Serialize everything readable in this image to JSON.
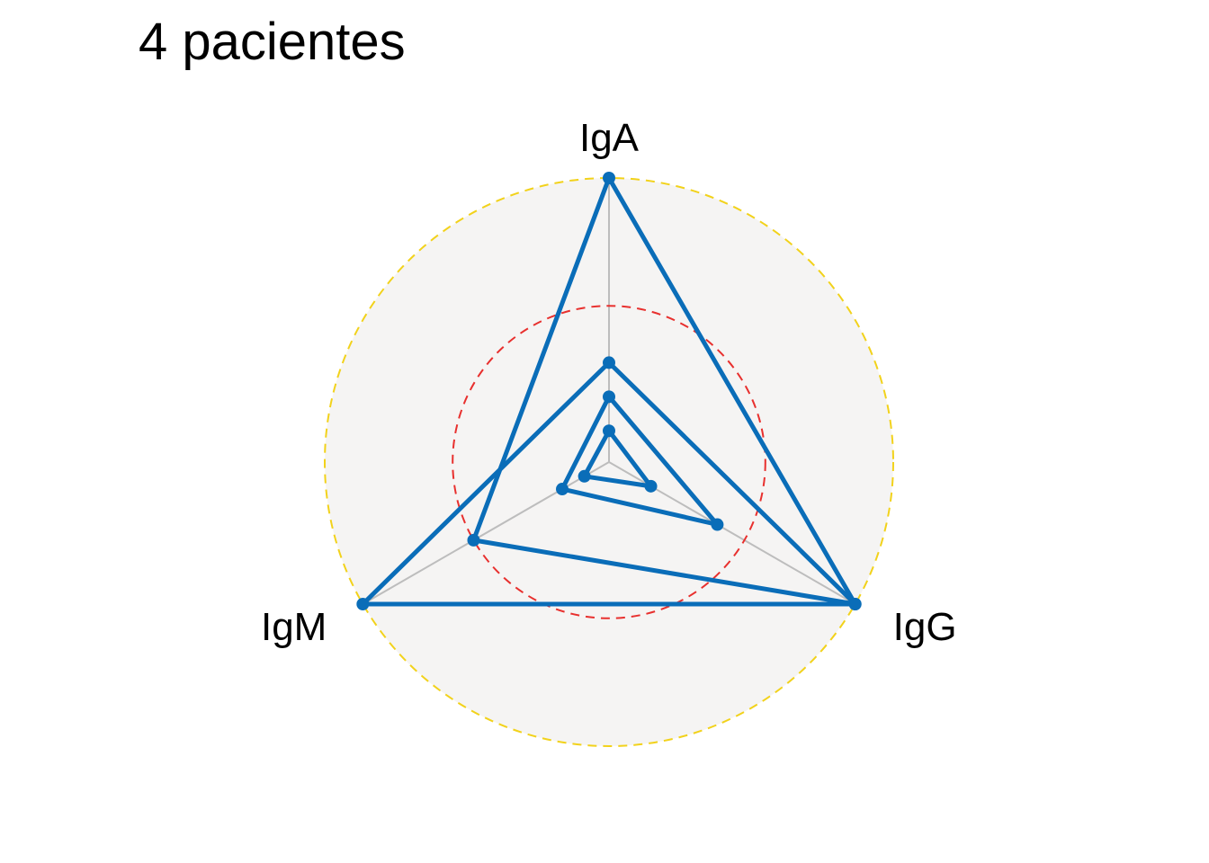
{
  "chart_data": {
    "type": "radar",
    "title": "4 pacientes",
    "axes": [
      "IgA",
      "IgG",
      "IgM"
    ],
    "rlim": [
      0,
      1
    ],
    "reference_rings": [
      {
        "value": 0.55,
        "color": "#e8302e",
        "style": "dashed"
      },
      {
        "value": 1.0,
        "color": "#f2d21b",
        "style": "dashed"
      }
    ],
    "background_color": "#f5f4f3",
    "series_color": "#0a6db8",
    "series": [
      {
        "values": [
          1.0,
          1.0,
          0.55
        ]
      },
      {
        "values": [
          0.35,
          1.0,
          1.0
        ]
      },
      {
        "values": [
          0.23,
          0.44,
          0.19
        ]
      },
      {
        "values": [
          0.11,
          0.17,
          0.1
        ]
      }
    ]
  }
}
